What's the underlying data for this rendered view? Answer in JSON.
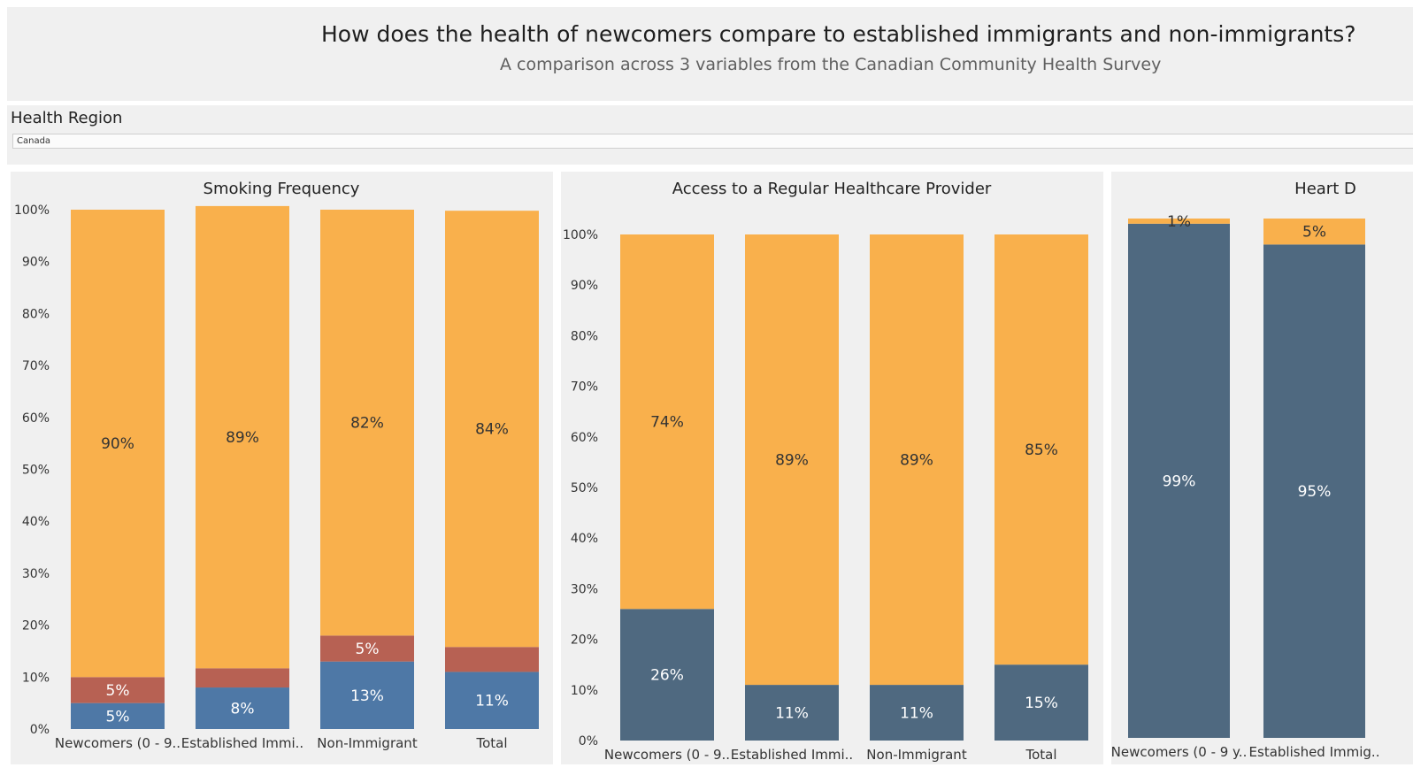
{
  "header": {
    "title": "How does the health of newcomers compare to established immigrants and non-immigrants?",
    "subtitle": "A comparison across 3 variables from the Canadian Community Health Survey"
  },
  "filter": {
    "label": "Health Region",
    "value": "Canada"
  },
  "colors": {
    "orange": "#f9b04c",
    "red": "#b76153",
    "blue": "#4e78a6",
    "slate": "#4f6980",
    "panel_bg": "#f0f0f0"
  },
  "chart_data": [
    {
      "type": "bar",
      "stacked": true,
      "title": "Smoking Frequency",
      "categories": [
        "Newcomers (0 - 9..",
        "Established Immi..",
        "Non-Immigrant",
        "Total"
      ],
      "yticks": [
        "0%",
        "10%",
        "20%",
        "30%",
        "40%",
        "50%",
        "60%",
        "70%",
        "80%",
        "90%",
        "100%"
      ],
      "ylim": [
        0,
        100
      ],
      "series": [
        {
          "color": "#4e78a6",
          "values": [
            5,
            8,
            13,
            11
          ],
          "labels": [
            "5%",
            "8%",
            "13%",
            "11%"
          ],
          "label_color": "#ffffff"
        },
        {
          "color": "#b76153",
          "values": [
            5,
            3.7,
            5,
            4.8
          ],
          "labels": [
            "5%",
            "",
            "5%",
            ""
          ],
          "label_color": "#ffffff"
        },
        {
          "color": "#f9b04c",
          "values": [
            90,
            89,
            82,
            84
          ],
          "labels": [
            "90%",
            "89%",
            "82%",
            "84%"
          ],
          "label_color": "#333333"
        }
      ]
    },
    {
      "type": "bar",
      "stacked": true,
      "title": "Access to a Regular Healthcare Provider",
      "categories": [
        "Newcomers (0 - 9..",
        "Established Immi..",
        "Non-Immigrant",
        "Total"
      ],
      "yticks": [
        "0%",
        "10%",
        "20%",
        "30%",
        "40%",
        "50%",
        "60%",
        "70%",
        "80%",
        "90%",
        "100%"
      ],
      "ylim": [
        0,
        100
      ],
      "series": [
        {
          "color": "#4f6980",
          "values": [
            26,
            11,
            11,
            15
          ],
          "labels": [
            "26%",
            "11%",
            "11%",
            "15%"
          ],
          "label_color": "#ffffff"
        },
        {
          "color": "#f9b04c",
          "values": [
            74,
            89,
            89,
            85
          ],
          "labels": [
            "74%",
            "89%",
            "89%",
            "85%"
          ],
          "label_color": "#333333"
        }
      ]
    },
    {
      "type": "bar",
      "stacked": true,
      "title": "Heart D",
      "categories": [
        "Newcomers (0 - 9 y..",
        "Established Immig.."
      ],
      "yticks": [],
      "ylim": [
        0,
        100
      ],
      "series": [
        {
          "color": "#4f6980",
          "values": [
            99,
            95
          ],
          "labels": [
            "99%",
            "95%"
          ],
          "label_color": "#ffffff"
        },
        {
          "color": "#f9b04c",
          "values": [
            1,
            5
          ],
          "labels": [
            "1%",
            "5%"
          ],
          "label_color": "#333333"
        }
      ]
    }
  ]
}
